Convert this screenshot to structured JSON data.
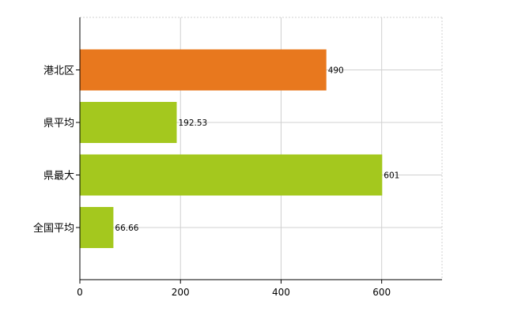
{
  "chart_data": {
    "type": "bar",
    "orientation": "horizontal",
    "categories": [
      "港北区",
      "県平均",
      "県最大",
      "全国平均"
    ],
    "values": [
      490,
      192.53,
      601,
      66.66
    ],
    "value_labels": [
      "490",
      "192.53",
      "601",
      "66.66"
    ],
    "bar_colors": [
      "#e8781e",
      "#a4c81e",
      "#a4c81e",
      "#a4c81e"
    ],
    "xlim": [
      0,
      720
    ],
    "xticks": [
      0,
      200,
      400,
      600
    ],
    "xtick_labels": [
      "0",
      "200",
      "400",
      "600"
    ],
    "grid": true,
    "legend": "none"
  }
}
